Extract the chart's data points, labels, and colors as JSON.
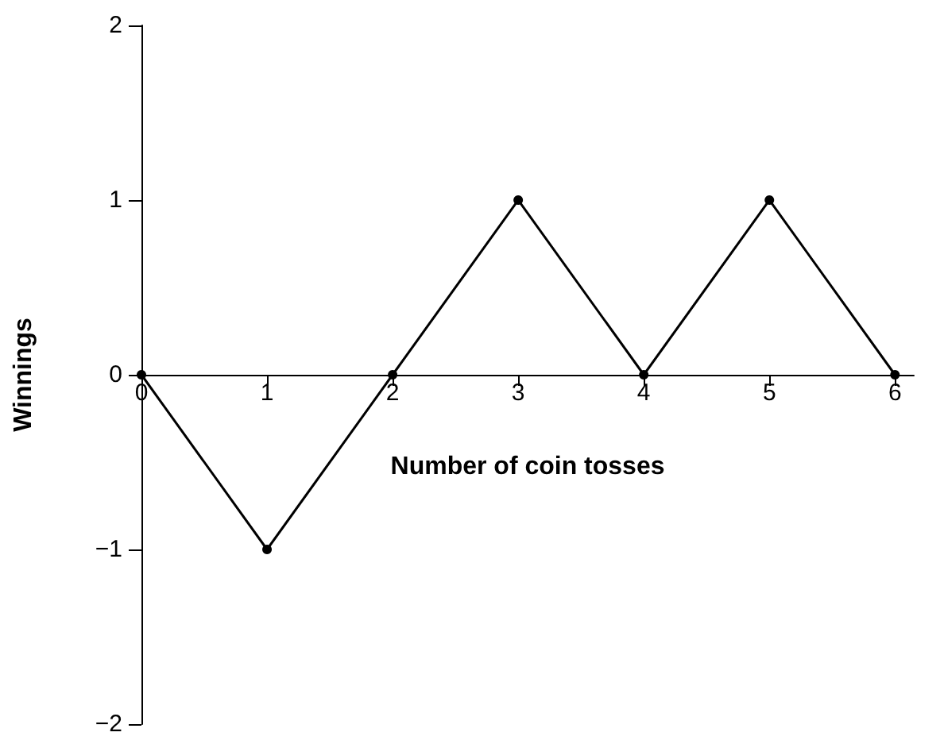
{
  "chart_data": {
    "type": "line",
    "xlabel": "Number of coin tosses",
    "ylabel": "Winnings",
    "x": [
      0,
      1,
      2,
      3,
      4,
      5,
      6
    ],
    "series": [
      {
        "color": "#000000",
        "values": [
          0,
          -1,
          0,
          1,
          0,
          1,
          0
        ]
      }
    ],
    "xlim": [
      0,
      6.15
    ],
    "xticks": [
      0,
      1,
      2,
      3,
      4,
      5,
      6
    ],
    "ylim": [
      -2,
      2
    ],
    "yticks": [
      -2,
      -1,
      0,
      1,
      2
    ],
    "marker": "circle",
    "line_style": "solid"
  }
}
